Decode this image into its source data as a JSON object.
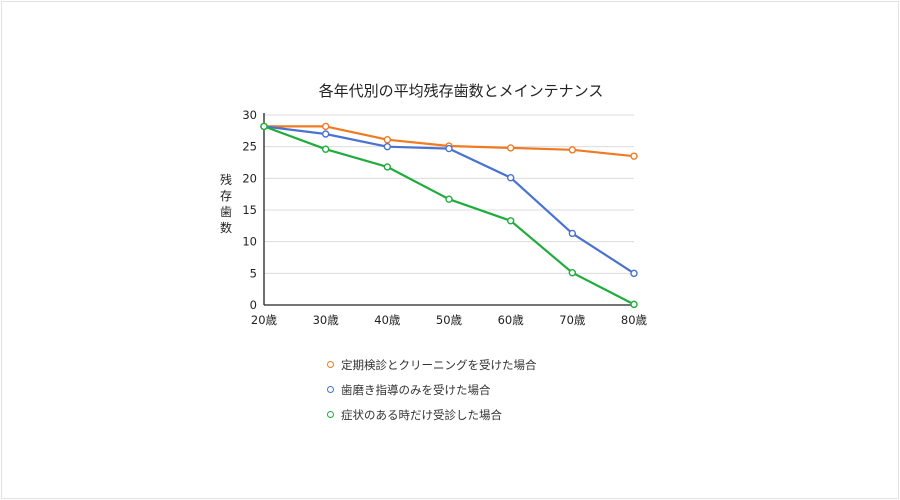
{
  "chart_data": {
    "type": "line",
    "title": "各年代別の平均残存歯数とメインテナンス",
    "xlabel": "",
    "ylabel": "残存歯数",
    "categories": [
      "20歳",
      "30歳",
      "40歳",
      "50歳",
      "60歳",
      "70歳",
      "80歳"
    ],
    "ylim": [
      0,
      30
    ],
    "yticks": [
      0,
      5,
      10,
      15,
      20,
      25,
      30
    ],
    "grid": true,
    "legend_position": "bottom",
    "series": [
      {
        "name": "定期検診とクリーニングを受けた場合",
        "color": "#f07a22",
        "values": [
          28.2,
          28.2,
          26.1,
          25.1,
          24.8,
          24.5,
          23.5
        ]
      },
      {
        "name": "歯磨き指導のみを受けた場合",
        "color": "#4a72d0",
        "values": [
          28.2,
          27.0,
          25.0,
          24.7,
          20.1,
          11.3,
          5.0
        ]
      },
      {
        "name": "症状のある時だけ受診した場合",
        "color": "#1ead3c",
        "values": [
          28.2,
          24.6,
          21.8,
          16.7,
          13.3,
          5.1,
          0.1
        ]
      }
    ]
  }
}
